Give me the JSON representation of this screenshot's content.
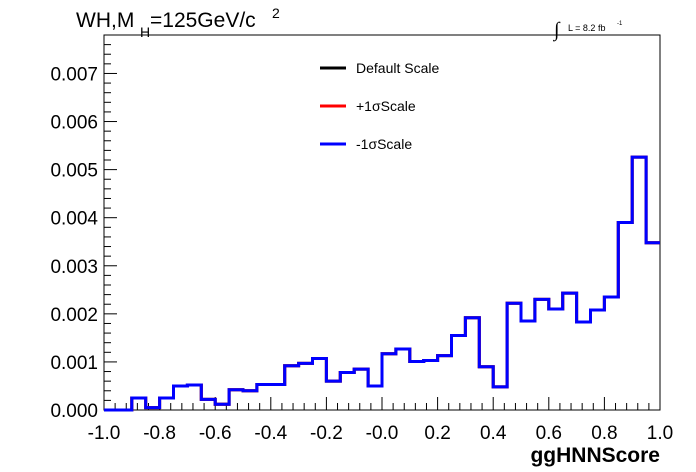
{
  "chart_data": {
    "type": "histogram-step",
    "title": {
      "main": "WH,M",
      "sub": "H",
      "rest": "=125GeV/c",
      "sup": "2"
    },
    "luminosity": {
      "symbol": "∫",
      "text": "L = 8.2 fb",
      "sup": "-1"
    },
    "xlabel": "ggHNNScore",
    "ylabel": "",
    "xlim": [
      -1.0,
      1.0
    ],
    "ylim": [
      0.0,
      0.0078
    ],
    "x_ticks": [
      "-1.0",
      "-0.8",
      "-0.6",
      "-0.4",
      "-0.2",
      "-0.0",
      "0.2",
      "0.4",
      "0.6",
      "0.8",
      "1.0"
    ],
    "y_ticks": [
      "0.000",
      "0.001",
      "0.002",
      "0.003",
      "0.004",
      "0.005",
      "0.006",
      "0.007"
    ],
    "bin_edges_start": -1.0,
    "bin_width": 0.05,
    "legend": {
      "placement": "top-center",
      "entries": [
        {
          "label": "Default Scale",
          "color": "#000000"
        },
        {
          "label": "+1σScale",
          "color": "#ff0000"
        },
        {
          "label": "-1σScale",
          "color": "#0000ff"
        }
      ]
    },
    "series": [
      {
        "name": "Default Scale",
        "color": "#000000",
        "values": [
          0.0,
          0.0,
          0.00025,
          5e-05,
          0.00025,
          0.0005,
          0.00052,
          0.00022,
          0.00012,
          0.00042,
          0.0004,
          0.00053,
          0.00053,
          0.00092,
          0.00097,
          0.00107,
          0.0006,
          0.00078,
          0.00085,
          0.0005,
          0.00117,
          0.00127,
          0.00101,
          0.00103,
          0.00113,
          0.00155,
          0.00192,
          0.0009,
          0.00048,
          0.00222,
          0.00185,
          0.0023,
          0.0021,
          0.00243,
          0.00183,
          0.00208,
          0.00235,
          0.0039,
          0.00526,
          0.00348
        ]
      },
      {
        "name": "+1σScale",
        "color": "#ff0000",
        "values": [
          0.0,
          0.0,
          0.00025,
          5e-05,
          0.00025,
          0.0005,
          0.00052,
          0.00022,
          0.00012,
          0.00042,
          0.0004,
          0.00053,
          0.00053,
          0.00092,
          0.00097,
          0.00107,
          0.0006,
          0.00078,
          0.00085,
          0.0005,
          0.00117,
          0.00127,
          0.00101,
          0.00103,
          0.00113,
          0.00155,
          0.00192,
          0.0009,
          0.00048,
          0.00222,
          0.00185,
          0.0023,
          0.0021,
          0.00243,
          0.00183,
          0.00208,
          0.00235,
          0.0039,
          0.00526,
          0.00348
        ]
      },
      {
        "name": "-1σScale",
        "color": "#0000ff",
        "values": [
          0.0,
          0.0,
          0.00025,
          5e-05,
          0.00025,
          0.0005,
          0.00052,
          0.00022,
          0.00012,
          0.00042,
          0.0004,
          0.00053,
          0.00053,
          0.00092,
          0.00097,
          0.00107,
          0.0006,
          0.00078,
          0.00085,
          0.0005,
          0.00117,
          0.00127,
          0.00101,
          0.00103,
          0.00113,
          0.00155,
          0.00192,
          0.0009,
          0.00048,
          0.00222,
          0.00185,
          0.0023,
          0.0021,
          0.00243,
          0.00183,
          0.00208,
          0.00235,
          0.0039,
          0.00526,
          0.00348
        ]
      }
    ],
    "grid": false
  }
}
